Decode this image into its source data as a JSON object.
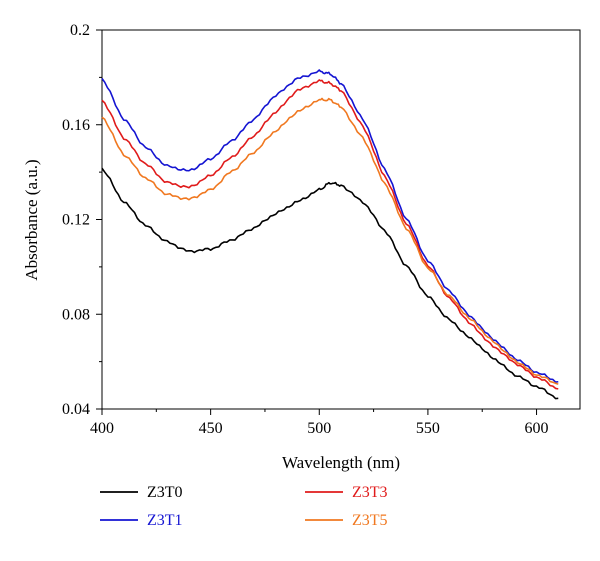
{
  "chart_data": {
    "type": "line",
    "title": "",
    "xlabel": "Wavelength (nm)",
    "ylabel": "Absorbance (a.u.)",
    "xlim": [
      400,
      620
    ],
    "ylim": [
      0.04,
      0.2
    ],
    "x_ticks": [
      400,
      450,
      500,
      550,
      600
    ],
    "x_tick_labels": [
      "400",
      "450",
      "500",
      "550",
      "600"
    ],
    "y_ticks": [
      0.04,
      0.08,
      0.12,
      0.16,
      0.2
    ],
    "y_tick_labels": [
      "0.04",
      "0.08",
      "0.12",
      "0.16",
      "0.2"
    ],
    "grid": false,
    "legend_position": "bottom",
    "series": [
      {
        "name": "Z3T0",
        "color": "#000000",
        "x": [
          400,
          410,
          420,
          430,
          440,
          450,
          460,
          470,
          480,
          490,
          500,
          505,
          510,
          520,
          530,
          540,
          550,
          560,
          570,
          580,
          590,
          600,
          610
        ],
        "y": [
          0.1415,
          0.1275,
          0.1175,
          0.1105,
          0.1065,
          0.1075,
          0.1115,
          0.1165,
          0.1225,
          0.1275,
          0.1325,
          0.1355,
          0.1345,
          0.1275,
          0.1155,
          0.1005,
          0.0875,
          0.0775,
          0.0695,
          0.0615,
          0.0545,
          0.0495,
          0.0445
        ]
      },
      {
        "name": "Z3T1",
        "color": "#1414d2",
        "x": [
          400,
          410,
          420,
          430,
          440,
          450,
          460,
          470,
          480,
          490,
          500,
          505,
          510,
          520,
          530,
          540,
          550,
          560,
          570,
          580,
          590,
          600,
          610
        ],
        "y": [
          0.1795,
          0.1625,
          0.1505,
          0.1425,
          0.1405,
          0.1455,
          0.1535,
          0.1625,
          0.1725,
          0.1795,
          0.1825,
          0.1815,
          0.1775,
          0.1625,
          0.1415,
          0.1205,
          0.1025,
          0.0895,
          0.0785,
          0.0695,
          0.0615,
          0.0555,
          0.0515
        ]
      },
      {
        "name": "Z3T3",
        "color": "#e01b1b",
        "x": [
          400,
          410,
          420,
          430,
          440,
          450,
          460,
          470,
          480,
          490,
          500,
          505,
          510,
          520,
          530,
          540,
          550,
          560,
          570,
          580,
          590,
          600,
          610
        ],
        "y": [
          0.1705,
          0.1545,
          0.1435,
          0.1355,
          0.1335,
          0.1385,
          0.1465,
          0.1555,
          0.1655,
          0.1745,
          0.1785,
          0.1775,
          0.1745,
          0.1595,
          0.1385,
          0.1185,
          0.1005,
          0.0865,
          0.0755,
          0.0665,
          0.0595,
          0.0535,
          0.0485
        ]
      },
      {
        "name": "Z3T5",
        "color": "#f07820",
        "x": [
          400,
          410,
          420,
          430,
          440,
          450,
          460,
          470,
          480,
          490,
          500,
          505,
          510,
          520,
          530,
          540,
          550,
          560,
          570,
          580,
          590,
          600,
          610
        ],
        "y": [
          0.1635,
          0.1475,
          0.1375,
          0.1305,
          0.1285,
          0.1325,
          0.1405,
          0.1485,
          0.1575,
          0.1655,
          0.1705,
          0.1705,
          0.1675,
          0.1545,
          0.1355,
          0.1165,
          0.0995,
          0.0875,
          0.0775,
          0.0685,
          0.0605,
          0.0545,
          0.0505
        ]
      }
    ]
  }
}
